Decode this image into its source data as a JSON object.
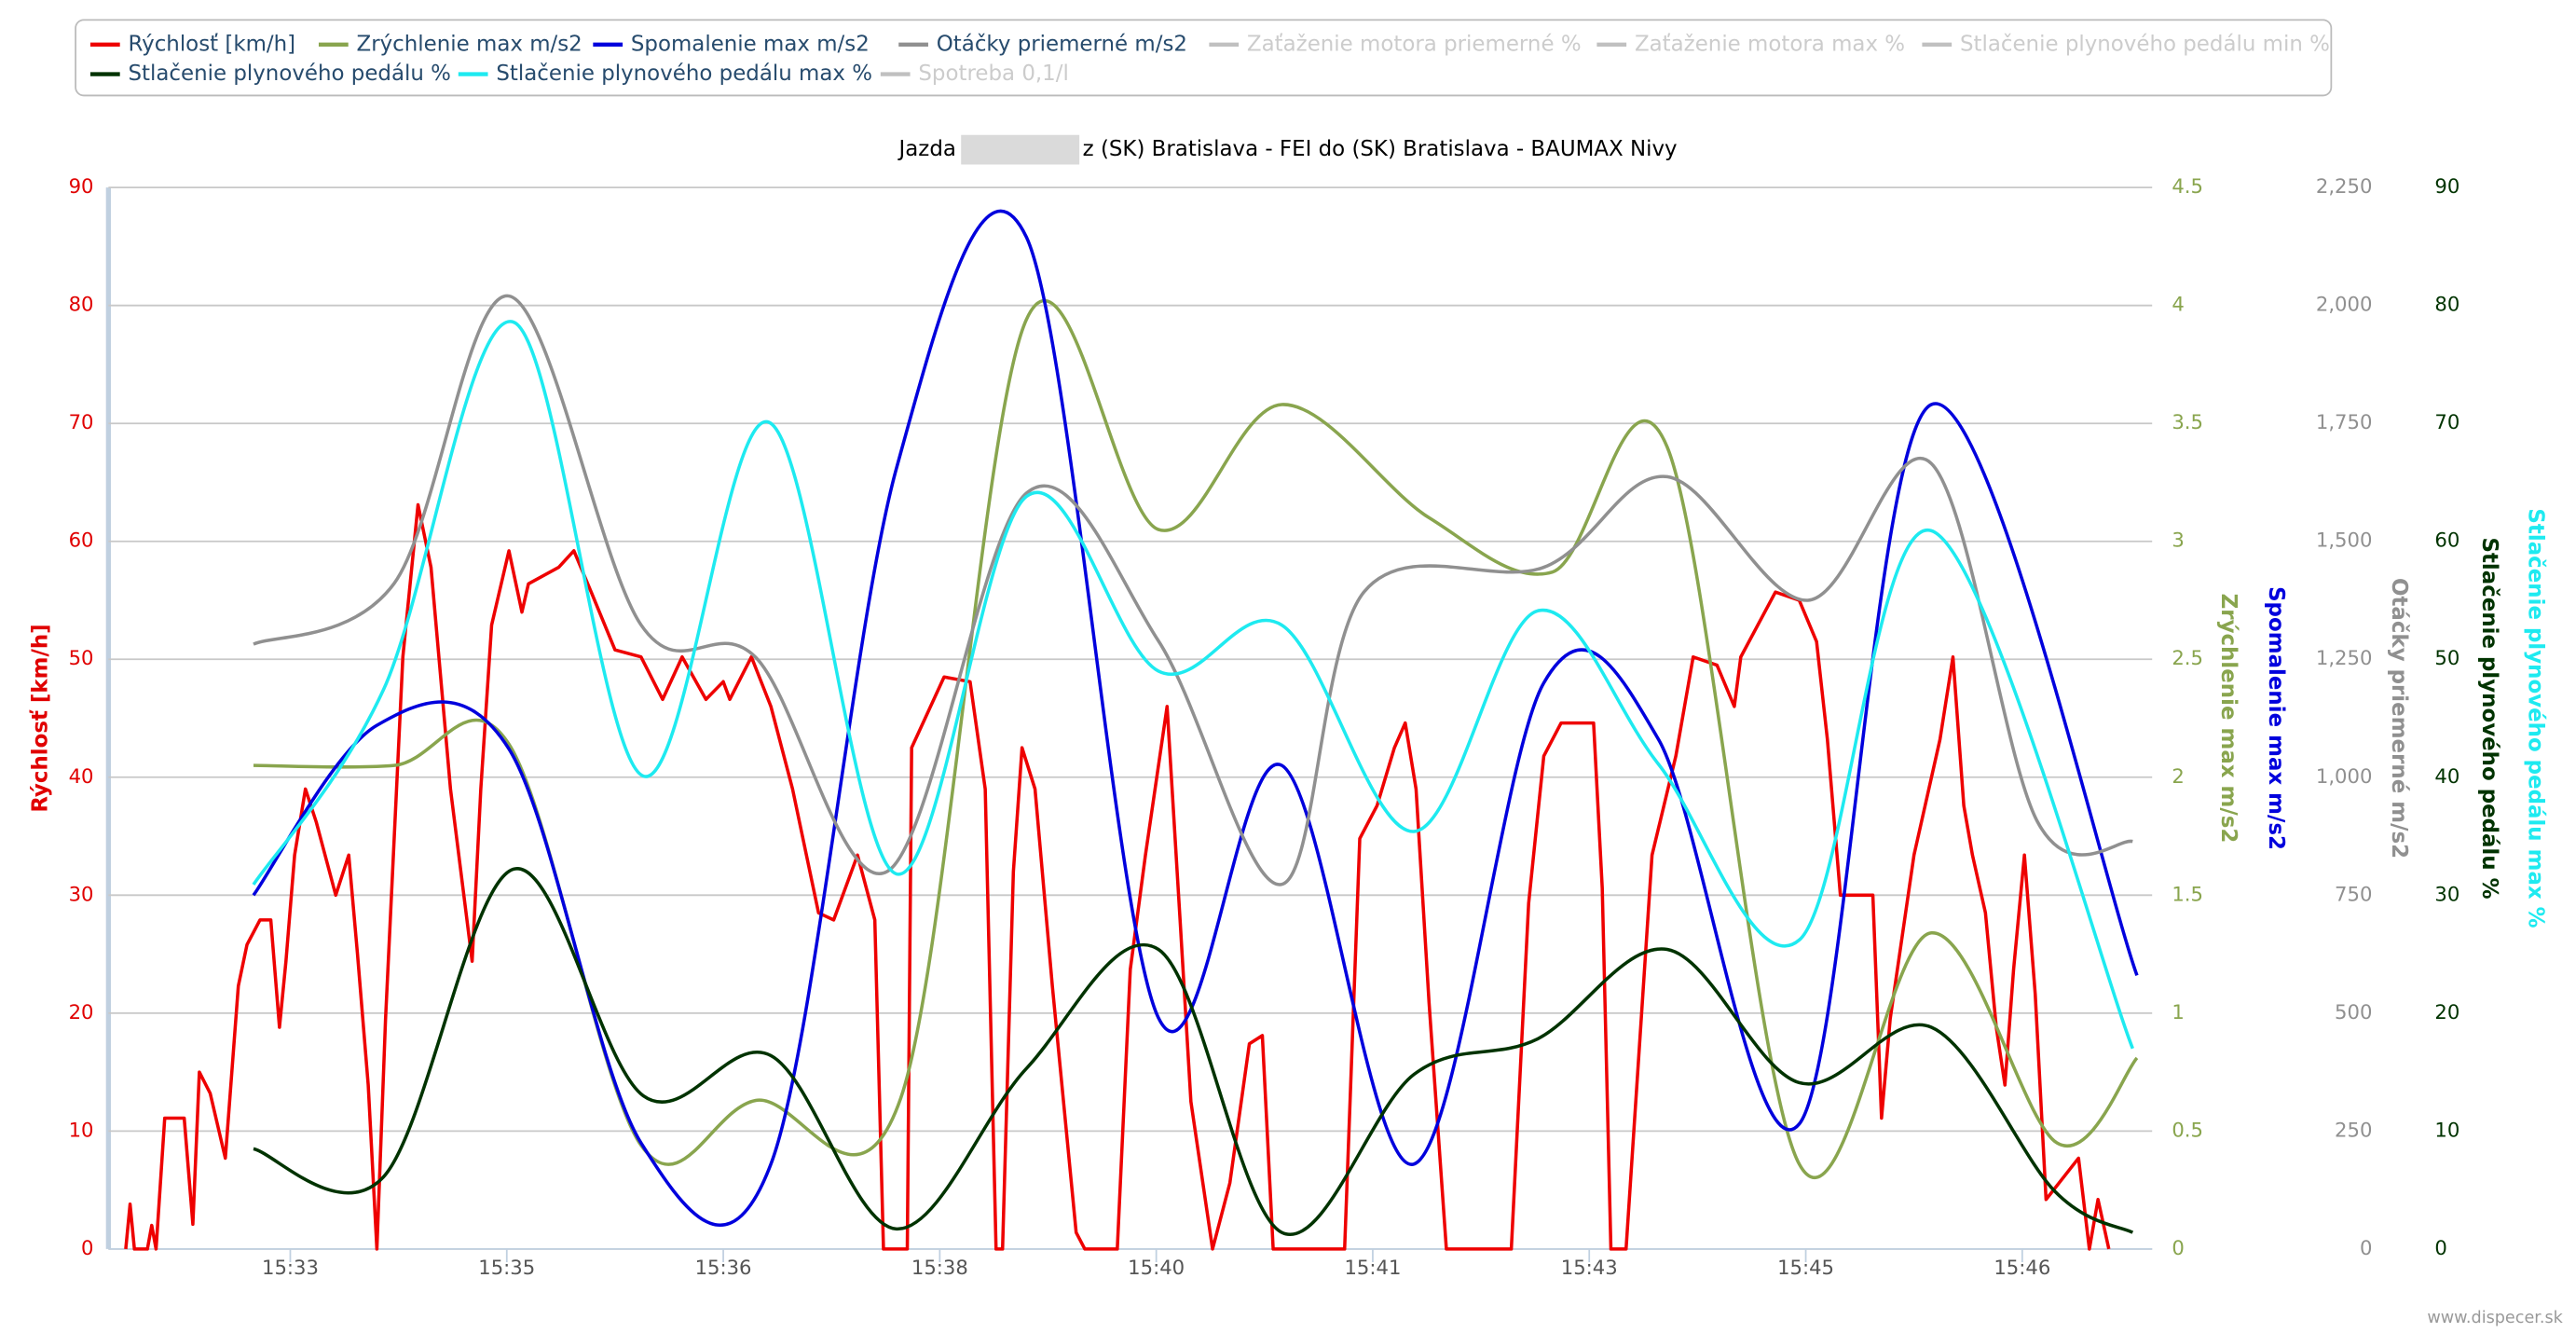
{
  "chart_data": {
    "type": "line",
    "title": "Jazda",
    "title_rest": "z (SK) Bratislava - FEI do (SK) Bratislava - BAUMAX Nivy",
    "credit": "www.dispecer.sk",
    "xlim": [
      55916,
      56860
    ],
    "xticks": [
      {
        "value": 56000,
        "label": "15:33"
      },
      {
        "value": 56100,
        "label": "15:35"
      },
      {
        "value": 56200,
        "label": "15:36"
      },
      {
        "value": 56300,
        "label": "15:38"
      },
      {
        "value": 56400,
        "label": "15:40"
      },
      {
        "value": 56500,
        "label": "15:41"
      },
      {
        "value": 56600,
        "label": "15:43"
      },
      {
        "value": 56700,
        "label": "15:45"
      },
      {
        "value": 56800,
        "label": "15:46"
      }
    ],
    "y_axes": [
      {
        "title": "Rýchlosť [km/h]",
        "color": "#e00000",
        "ylim": [
          0,
          90
        ],
        "yticks": [
          0,
          10,
          20,
          30,
          40,
          50,
          60,
          70,
          80,
          90
        ],
        "grid": true
      },
      {
        "title": "Zrýchlenie max m/s2",
        "color": "#89a54e",
        "ylim": [
          0,
          4.5
        ],
        "yticks": [
          0,
          0.5,
          1,
          1.5,
          2,
          2.5,
          3,
          3.5,
          4,
          4.5
        ]
      },
      {
        "title": "Spomalenie max m/s2",
        "color": "#0000dd",
        "ylim": [
          0,
          4.5
        ]
      },
      {
        "title": "Otáčky priemerné m/s2",
        "color": "#909090",
        "ylim": [
          0,
          2250
        ],
        "yticks": [
          0,
          250,
          500,
          750,
          {
            "value": 1000,
            "label": "1,000"
          },
          {
            "value": 1250,
            "label": "1,250"
          },
          {
            "value": 1500,
            "label": "1,500"
          },
          {
            "value": 1750,
            "label": "1,750"
          },
          {
            "value": 2000,
            "label": "2,000"
          },
          {
            "value": 2250,
            "label": "2,250"
          }
        ]
      },
      {
        "title": "Stlačenie plynového pedálu %",
        "color": "#003300",
        "ylim": [
          0,
          90
        ],
        "yticks": [
          0,
          10,
          20,
          30,
          40,
          50,
          60,
          70,
          80,
          90
        ]
      },
      {
        "title": "Stlačenie plynového pedálu max %",
        "color": "#1eeaf0",
        "ylim": [
          0,
          90
        ]
      }
    ],
    "series": [
      {
        "name": "Rýchlosť [km/h]",
        "color": "#ee0000",
        "axis": 0,
        "smooth": false,
        "x": [
          55924,
          55926,
          55928,
          55934,
          55936,
          55938,
          55942,
          55949,
          55951,
          55955,
          55958,
          55963,
          55970,
          55976,
          55980,
          55986,
          55991,
          55995,
          55998,
          56002,
          56007,
          56012,
          56021,
          56027,
          56031,
          56036,
          56040,
          56044,
          56052,
          56059,
          56065,
          56074,
          56084,
          56088,
          56093,
          56101,
          56107,
          56110,
          56124,
          56131,
          56139,
          56150,
          56162,
          56172,
          56181,
          56192,
          56200,
          56203,
          56213,
          56222,
          56232,
          56244,
          56251,
          56262,
          56270,
          56274,
          56285,
          56287,
          56302,
          56314,
          56321,
          56326,
          56329,
          56334,
          56338,
          56344,
          56352,
          56363,
          56367,
          56382,
          56388,
          56395,
          56405,
          56411,
          56416,
          56426,
          56434,
          56443,
          56449,
          56454,
          56487,
          56494,
          56502,
          56510,
          56515,
          56520,
          56526,
          56534,
          56564,
          56572,
          56579,
          56587,
          56602,
          56606,
          56610,
          56617,
          56629,
          56640,
          56648,
          56659,
          56667,
          56670,
          56686,
          56697,
          56705,
          56710,
          56716,
          56731,
          56735,
          56739,
          56750,
          56762,
          56768,
          56773,
          56777,
          56783,
          56788,
          56792,
          56796,
          56801,
          56806,
          56811,
          56826,
          56831,
          56835,
          56840
        ],
        "values": [
          0,
          3.8,
          0,
          0,
          2,
          0,
          11.1,
          11.1,
          11.1,
          2.1,
          15,
          13.2,
          7.7,
          22.3,
          25.8,
          27.9,
          27.9,
          18.8,
          24.4,
          33.4,
          39,
          36.2,
          30,
          33.4,
          25.1,
          13.9,
          0,
          19.5,
          50.2,
          63.1,
          57.8,
          39,
          24.4,
          39,
          52.9,
          59.2,
          54,
          56.4,
          57.8,
          59.2,
          55.7,
          50.8,
          50.2,
          46.6,
          50.2,
          46.6,
          48.1,
          46.6,
          50.2,
          46,
          39,
          28.5,
          27.9,
          33.4,
          27.9,
          0,
          0,
          42.5,
          48.5,
          48.1,
          39,
          0,
          0,
          32,
          42.5,
          39,
          22.3,
          1.4,
          0,
          0,
          23.7,
          33.4,
          46,
          27.9,
          12.5,
          0,
          5.6,
          17.4,
          18.1,
          0,
          0,
          34.8,
          37.6,
          42.5,
          44.6,
          39,
          20.9,
          0,
          0,
          29.3,
          41.8,
          44.6,
          44.6,
          30.6,
          0,
          0,
          33.4,
          41.8,
          50.2,
          49.5,
          46,
          50.2,
          55.7,
          55,
          51.5,
          43.2,
          30,
          30,
          11.1,
          19.5,
          33.4,
          43.2,
          50.2,
          37.6,
          33.4,
          28.5,
          18.8,
          13.9,
          23.7,
          33.4,
          21.6,
          4.2,
          7.7,
          0,
          4.2,
          0
        ]
      },
      {
        "name": "Zrýchlenie max m/s2",
        "color": "#89a54e",
        "axis": 1,
        "smooth": true,
        "x": [
          55983,
          56048,
          56101,
          56162,
          56215,
          56282,
          56340,
          56401,
          56458,
          56526,
          56583,
          56636,
          56697,
          56758,
          56816,
          56853
        ],
        "values": [
          2.05,
          2.05,
          2.14,
          0.44,
          0.63,
          0.64,
          3.94,
          3.05,
          3.58,
          3.1,
          2.87,
          3.4,
          0.36,
          1.34,
          0.45,
          0.81
        ]
      },
      {
        "name": "Spomalenie max m/s2",
        "color": "#0000dd",
        "axis": 2,
        "smooth": true,
        "x": [
          55983,
          56040,
          56101,
          56162,
          56222,
          56280,
          56340,
          56401,
          56458,
          56519,
          56579,
          56632,
          56697,
          56758,
          56853
        ],
        "values": [
          1.5,
          2.22,
          2.12,
          0.45,
          0.36,
          3.31,
          4.29,
          0.98,
          2.05,
          0.36,
          2.4,
          2.16,
          0.53,
          3.58,
          1.16
        ]
      },
      {
        "name": "Otáčky priemerné m/s2",
        "color": "#909090",
        "axis": 3,
        "smooth": true,
        "x": [
          55983,
          56048,
          56101,
          56162,
          56215,
          56276,
          56340,
          56401,
          56458,
          56496,
          56579,
          56636,
          56701,
          56758,
          56807,
          56851
        ],
        "values": [
          1282,
          1411,
          2020,
          1323,
          1254,
          801,
          1602,
          1289,
          773,
          1393,
          1445,
          1637,
          1375,
          1665,
          906,
          864
        ]
      },
      {
        "name": "Zaťaženie motora priemerné %",
        "color": "#c0c0c0",
        "hidden": true
      },
      {
        "name": "Zaťaženie motora max %",
        "color": "#c0c0c0",
        "hidden": true
      },
      {
        "name": "Stlačenie plynového pedálu min %",
        "color": "#c0c0c0",
        "hidden": true
      },
      {
        "name": "Stlačenie plynového pedálu %",
        "color": "#003300",
        "axis": 4,
        "smooth": true,
        "x": [
          55983,
          56043,
          56103,
          56163,
          56222,
          56280,
          56340,
          56401,
          56458,
          56519,
          56576,
          56636,
          56697,
          56758,
          56815,
          56851
        ],
        "values": [
          8.5,
          6.1,
          32.2,
          13,
          16.4,
          1.7,
          15.3,
          25.4,
          1.4,
          14.8,
          17.8,
          25.4,
          14.1,
          18.8,
          4.9,
          1.4
        ]
      },
      {
        "name": "Stlačenie plynového pedálu max %",
        "color": "#1eeaf0",
        "axis": 5,
        "smooth": true,
        "x": [
          55983,
          56043,
          56103,
          56163,
          56221,
          56280,
          56340,
          56401,
          56458,
          56519,
          56576,
          56632,
          56697,
          56758,
          56851
        ],
        "values": [
          30.9,
          47.4,
          78.6,
          40.1,
          70.1,
          31.8,
          63.8,
          49,
          52.9,
          35.4,
          54.1,
          41.1,
          26.2,
          60.9,
          17
        ]
      },
      {
        "name": "Spotreba 0,1/l",
        "color": "#c0c0c0",
        "hidden": true
      }
    ]
  }
}
